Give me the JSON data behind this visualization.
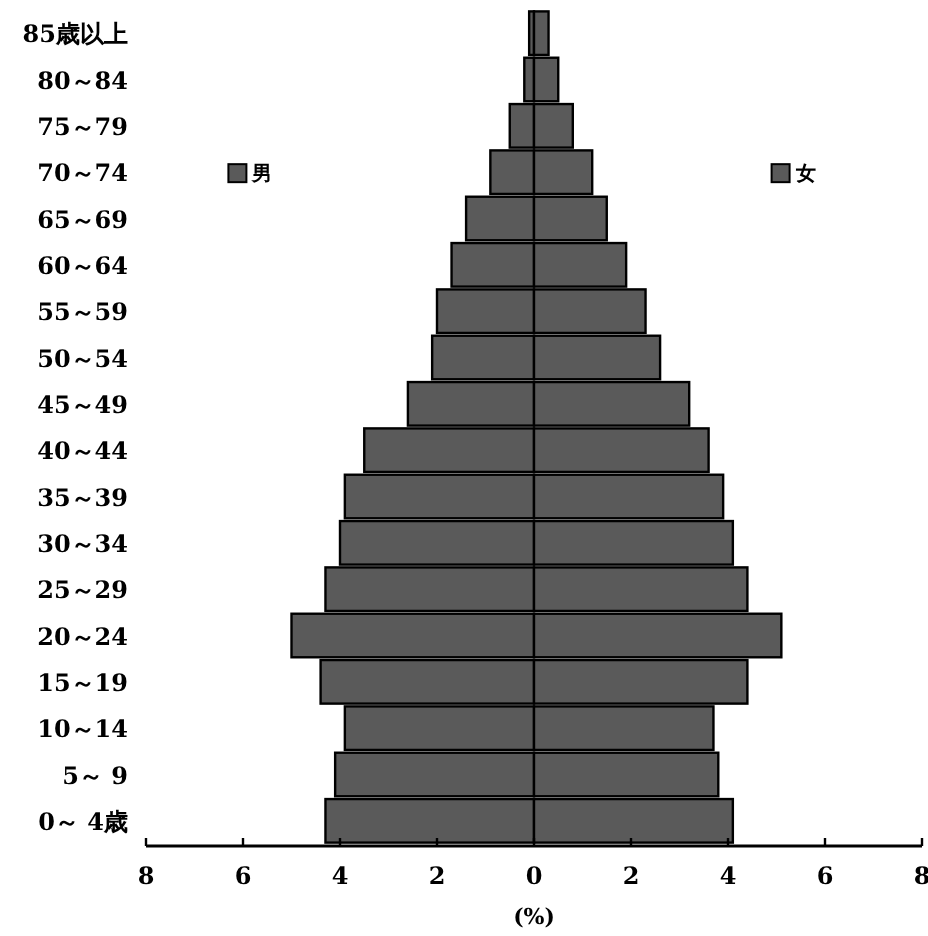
{
  "chart_data": {
    "type": "bar",
    "orientation": "horizontal",
    "xlabel": "(%)",
    "categories": [
      "85歳以上",
      "80～84",
      "75～79",
      "70～74",
      "65～69",
      "60～64",
      "55～59",
      "50～54",
      "45～49",
      "40～44",
      "35～39",
      "30～34",
      "25～29",
      "20～24",
      "15～19",
      "10～14",
      "5～ 9",
      "0～ 4歳"
    ],
    "series": [
      {
        "name": "男",
        "color": "#5a5a5a",
        "values": [
          -0.1,
          -0.2,
          -0.5,
          -0.9,
          -1.4,
          -1.7,
          -2.0,
          -2.1,
          -2.6,
          -3.5,
          -3.9,
          -4.0,
          -4.3,
          -5.0,
          -4.4,
          -3.9,
          -4.1,
          -4.3
        ]
      },
      {
        "name": "女",
        "color": "#5a5a5a",
        "values": [
          0.3,
          0.5,
          0.8,
          1.2,
          1.5,
          1.9,
          2.3,
          2.6,
          3.2,
          3.6,
          3.9,
          4.1,
          4.4,
          5.1,
          4.4,
          3.7,
          3.8,
          4.1
        ]
      }
    ],
    "xlim": [
      -8,
      8
    ],
    "xticks": [
      {
        "value": -8,
        "label": "8"
      },
      {
        "value": -6,
        "label": "6"
      },
      {
        "value": -4,
        "label": "4"
      },
      {
        "value": -2,
        "label": "2"
      },
      0,
      2,
      4,
      6,
      8
    ],
    "stacked": true,
    "legend": "top",
    "grid": false
  }
}
